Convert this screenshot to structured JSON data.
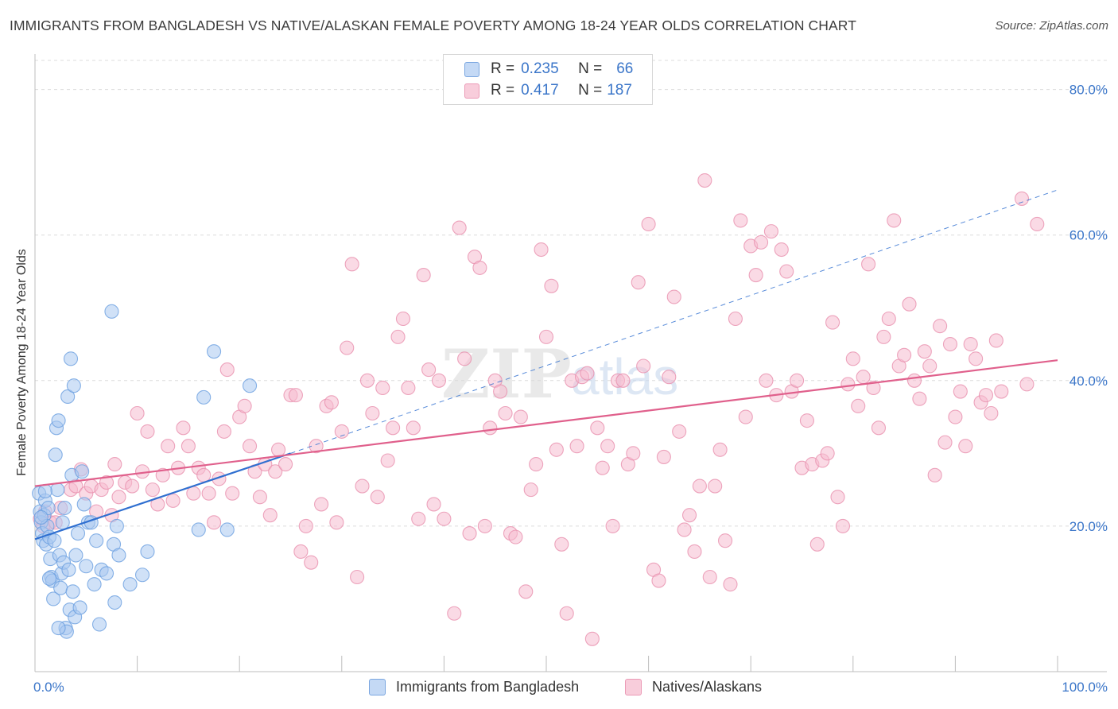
{
  "title": "IMMIGRANTS FROM BANGLADESH VS NATIVE/ALASKAN FEMALE POVERTY AMONG 18-24 YEAR OLDS CORRELATION CHART",
  "source": "Source: ZipAtlas.com",
  "watermark": {
    "zip": "ZIP",
    "atlas": "atlas"
  },
  "legend": {
    "rows": [
      {
        "r_label": "R =",
        "r_value": "0.235",
        "n_label": "N =",
        "n_value": "66",
        "color": "#aac8f0"
      },
      {
        "r_label": "R =",
        "r_value": "0.417",
        "n_label": "N =",
        "n_value": "187",
        "color": "#f4b8cc"
      }
    ]
  },
  "chart_data": {
    "type": "scatter",
    "title": "IMMIGRANTS FROM BANGLADESH VS NATIVE/ALASKAN FEMALE POVERTY AMONG 18-24 YEAR OLDS CORRELATION CHART",
    "xlabel": "",
    "ylabel": "Female Poverty Among 18-24 Year Olds",
    "xlim": [
      0,
      100
    ],
    "ylim": [
      0,
      84
    ],
    "x_tick_labels": [
      "0.0%",
      "100.0%"
    ],
    "y_tick_labels": [
      "20.0%",
      "40.0%",
      "60.0%",
      "80.0%"
    ],
    "y_ticks": [
      20,
      40,
      60,
      80
    ],
    "grid": true,
    "legend_position": "top-center",
    "series": [
      {
        "name": "Immigrants from Bangladesh",
        "color": "#6a9fe0",
        "fill": "#aac8f0",
        "r": 0.235,
        "n": 66,
        "trend": {
          "x0": 0,
          "y0": 18.2,
          "x1": 25,
          "y1": 30.0,
          "dashed_to_x": 100,
          "dashed_to_y": 66.2,
          "color": "#2f6fd0"
        },
        "points": [
          [
            0.4,
            24.5
          ],
          [
            0.5,
            22.0
          ],
          [
            0.6,
            20.5
          ],
          [
            0.7,
            19.0
          ],
          [
            0.8,
            18.0
          ],
          [
            0.9,
            21.5
          ],
          [
            1.0,
            23.5
          ],
          [
            1.1,
            17.5
          ],
          [
            1.2,
            20.0
          ],
          [
            1.3,
            22.5
          ],
          [
            1.4,
            18.5
          ],
          [
            1.5,
            15.5
          ],
          [
            1.6,
            13.0
          ],
          [
            1.7,
            12.5
          ],
          [
            1.8,
            10.0
          ],
          [
            1.9,
            18.0
          ],
          [
            2.0,
            29.8
          ],
          [
            2.1,
            33.5
          ],
          [
            2.2,
            25.0
          ],
          [
            2.3,
            34.5
          ],
          [
            2.4,
            16.0
          ],
          [
            2.5,
            11.5
          ],
          [
            2.6,
            13.5
          ],
          [
            2.7,
            20.5
          ],
          [
            2.8,
            15.0
          ],
          [
            2.9,
            22.5
          ],
          [
            3.0,
            6.0
          ],
          [
            3.1,
            5.5
          ],
          [
            3.2,
            37.8
          ],
          [
            3.3,
            14.0
          ],
          [
            3.4,
            8.5
          ],
          [
            3.5,
            43.0
          ],
          [
            3.6,
            27.0
          ],
          [
            3.7,
            11.0
          ],
          [
            3.8,
            39.3
          ],
          [
            3.9,
            7.5
          ],
          [
            4.0,
            16.0
          ],
          [
            4.2,
            19.0
          ],
          [
            4.4,
            8.8
          ],
          [
            4.6,
            27.5
          ],
          [
            4.8,
            23.0
          ],
          [
            5.0,
            14.5
          ],
          [
            5.2,
            20.5
          ],
          [
            5.5,
            20.5
          ],
          [
            5.8,
            12.0
          ],
          [
            6.0,
            18.0
          ],
          [
            6.3,
            6.5
          ],
          [
            6.5,
            14.0
          ],
          [
            7.0,
            13.5
          ],
          [
            7.5,
            49.5
          ],
          [
            7.7,
            17.5
          ],
          [
            7.8,
            9.5
          ],
          [
            8.0,
            20.0
          ],
          [
            8.2,
            16.0
          ],
          [
            9.3,
            12.0
          ],
          [
            10.5,
            13.3
          ],
          [
            11.0,
            16.5
          ],
          [
            16.0,
            19.5
          ],
          [
            16.5,
            37.7
          ],
          [
            17.5,
            44.0
          ],
          [
            18.8,
            19.5
          ],
          [
            21.0,
            39.3
          ],
          [
            1.0,
            24.8
          ],
          [
            2.3,
            6.0
          ],
          [
            0.6,
            21.2
          ],
          [
            1.4,
            12.8
          ]
        ]
      },
      {
        "name": "Natives/Alaskans",
        "color": "#e890ae",
        "fill": "#f6bcd0",
        "r": 0.417,
        "n": 187,
        "trend": {
          "x0": 0,
          "y0": 25.5,
          "x1": 100,
          "y1": 42.8,
          "color": "#e0608c"
        },
        "points": [
          [
            0.5,
            21.0
          ],
          [
            0.8,
            20.0
          ],
          [
            1.0,
            22.0
          ],
          [
            1.5,
            20.5
          ],
          [
            2.0,
            20.5
          ],
          [
            2.5,
            22.5
          ],
          [
            3.5,
            25.0
          ],
          [
            4.0,
            25.5
          ],
          [
            4.5,
            27.8
          ],
          [
            5.0,
            24.5
          ],
          [
            5.5,
            25.5
          ],
          [
            6.0,
            22.0
          ],
          [
            6.5,
            25.0
          ],
          [
            7.0,
            26.0
          ],
          [
            7.5,
            21.5
          ],
          [
            7.8,
            28.5
          ],
          [
            8.2,
            24.0
          ],
          [
            8.8,
            26.0
          ],
          [
            9.5,
            25.5
          ],
          [
            10.0,
            35.5
          ],
          [
            10.5,
            27.5
          ],
          [
            11.0,
            33.0
          ],
          [
            11.5,
            25.0
          ],
          [
            12.0,
            23.0
          ],
          [
            12.5,
            27.0
          ],
          [
            13.0,
            31.0
          ],
          [
            13.5,
            23.5
          ],
          [
            14.0,
            28.0
          ],
          [
            14.5,
            33.5
          ],
          [
            15.0,
            31.0
          ],
          [
            15.5,
            24.5
          ],
          [
            16.0,
            28.0
          ],
          [
            16.5,
            27.0
          ],
          [
            17.0,
            24.5
          ],
          [
            17.5,
            20.5
          ],
          [
            18.0,
            26.5
          ],
          [
            18.5,
            33.0
          ],
          [
            18.8,
            41.5
          ],
          [
            19.3,
            24.5
          ],
          [
            20.0,
            35.0
          ],
          [
            20.5,
            36.5
          ],
          [
            21.0,
            31.0
          ],
          [
            21.5,
            27.5
          ],
          [
            22.0,
            24.0
          ],
          [
            22.5,
            28.5
          ],
          [
            23.0,
            21.5
          ],
          [
            23.5,
            27.5
          ],
          [
            23.8,
            30.5
          ],
          [
            24.5,
            28.5
          ],
          [
            25.0,
            38.0
          ],
          [
            25.5,
            38.0
          ],
          [
            26.0,
            16.5
          ],
          [
            26.5,
            20.0
          ],
          [
            27.0,
            15.0
          ],
          [
            27.5,
            31.0
          ],
          [
            28.0,
            23.0
          ],
          [
            28.5,
            36.5
          ],
          [
            29.0,
            37.0
          ],
          [
            29.5,
            20.5
          ],
          [
            30.0,
            33.0
          ],
          [
            30.5,
            44.5
          ],
          [
            31.0,
            56.0
          ],
          [
            31.5,
            13.0
          ],
          [
            32.0,
            25.5
          ],
          [
            32.5,
            40.0
          ],
          [
            33.0,
            35.5
          ],
          [
            33.5,
            24.0
          ],
          [
            34.0,
            39.0
          ],
          [
            34.5,
            29.0
          ],
          [
            35.0,
            33.5
          ],
          [
            35.5,
            46.0
          ],
          [
            36.0,
            48.5
          ],
          [
            36.5,
            39.0
          ],
          [
            37.0,
            33.5
          ],
          [
            37.5,
            21.0
          ],
          [
            38.0,
            54.5
          ],
          [
            38.5,
            41.5
          ],
          [
            39.0,
            23.0
          ],
          [
            39.5,
            40.0
          ],
          [
            40.0,
            21.0
          ],
          [
            41.0,
            8.0
          ],
          [
            41.5,
            61.0
          ],
          [
            42.0,
            43.0
          ],
          [
            42.5,
            19.0
          ],
          [
            43.0,
            57.0
          ],
          [
            43.5,
            55.5
          ],
          [
            44.0,
            20.0
          ],
          [
            44.5,
            33.5
          ],
          [
            45.0,
            40.0
          ],
          [
            45.5,
            38.5
          ],
          [
            46.0,
            35.5
          ],
          [
            46.5,
            19.0
          ],
          [
            47.0,
            18.5
          ],
          [
            47.5,
            35.0
          ],
          [
            48.0,
            11.0
          ],
          [
            48.5,
            25.0
          ],
          [
            49.0,
            28.5
          ],
          [
            49.5,
            58.0
          ],
          [
            50.0,
            46.0
          ],
          [
            50.5,
            53.0
          ],
          [
            51.0,
            30.5
          ],
          [
            51.5,
            17.5
          ],
          [
            52.0,
            8.0
          ],
          [
            52.5,
            40.0
          ],
          [
            53.0,
            31.0
          ],
          [
            53.5,
            40.5
          ],
          [
            54.0,
            41.0
          ],
          [
            54.5,
            4.5
          ],
          [
            55.0,
            33.5
          ],
          [
            55.5,
            28.0
          ],
          [
            56.0,
            31.0
          ],
          [
            56.5,
            20.0
          ],
          [
            57.0,
            40.0
          ],
          [
            57.5,
            40.0
          ],
          [
            58.0,
            28.5
          ],
          [
            58.5,
            30.0
          ],
          [
            59.0,
            53.5
          ],
          [
            59.5,
            42.0
          ],
          [
            60.0,
            61.5
          ],
          [
            60.5,
            14.0
          ],
          [
            61.0,
            12.5
          ],
          [
            61.5,
            29.5
          ],
          [
            62.0,
            40.5
          ],
          [
            62.5,
            51.5
          ],
          [
            63.0,
            33.0
          ],
          [
            63.5,
            19.5
          ],
          [
            64.0,
            21.5
          ],
          [
            64.5,
            16.5
          ],
          [
            65.0,
            25.5
          ],
          [
            65.5,
            67.5
          ],
          [
            66.0,
            13.0
          ],
          [
            66.5,
            25.5
          ],
          [
            67.0,
            30.5
          ],
          [
            67.5,
            18.0
          ],
          [
            68.0,
            12.0
          ],
          [
            68.5,
            48.5
          ],
          [
            69.0,
            62.0
          ],
          [
            69.5,
            35.0
          ],
          [
            70.0,
            58.5
          ],
          [
            70.5,
            54.5
          ],
          [
            71.0,
            59.0
          ],
          [
            71.5,
            40.0
          ],
          [
            72.0,
            60.5
          ],
          [
            72.5,
            38.0
          ],
          [
            73.0,
            58.0
          ],
          [
            73.5,
            55.0
          ],
          [
            74.0,
            38.5
          ],
          [
            74.5,
            40.0
          ],
          [
            75.0,
            28.0
          ],
          [
            75.5,
            34.5
          ],
          [
            76.0,
            28.5
          ],
          [
            76.5,
            17.5
          ],
          [
            77.0,
            29.0
          ],
          [
            77.5,
            30.0
          ],
          [
            78.0,
            48.0
          ],
          [
            78.5,
            24.0
          ],
          [
            79.0,
            20.0
          ],
          [
            79.5,
            39.5
          ],
          [
            80.0,
            43.0
          ],
          [
            80.5,
            36.5
          ],
          [
            81.0,
            40.5
          ],
          [
            81.5,
            56.0
          ],
          [
            82.0,
            39.0
          ],
          [
            82.5,
            33.5
          ],
          [
            83.0,
            46.0
          ],
          [
            83.5,
            48.5
          ],
          [
            84.0,
            62.0
          ],
          [
            84.5,
            42.0
          ],
          [
            85.0,
            43.5
          ],
          [
            85.5,
            50.5
          ],
          [
            86.0,
            40.0
          ],
          [
            86.5,
            37.5
          ],
          [
            87.0,
            44.0
          ],
          [
            87.5,
            42.0
          ],
          [
            88.0,
            27.0
          ],
          [
            88.5,
            47.5
          ],
          [
            89.0,
            31.5
          ],
          [
            89.5,
            45.0
          ],
          [
            90.0,
            35.0
          ],
          [
            90.5,
            38.5
          ],
          [
            91.0,
            31.0
          ],
          [
            91.5,
            45.0
          ],
          [
            92.0,
            43.0
          ],
          [
            92.5,
            37.0
          ],
          [
            93.0,
            38.0
          ],
          [
            93.5,
            35.5
          ],
          [
            94.0,
            45.5
          ],
          [
            94.5,
            38.5
          ],
          [
            96.5,
            65.0
          ],
          [
            97.0,
            39.5
          ],
          [
            98.0,
            61.5
          ]
        ]
      }
    ]
  },
  "bottom_legend": {
    "items": [
      {
        "label": "Immigrants from Bangladesh"
      },
      {
        "label": "Natives/Alaskans"
      }
    ]
  }
}
